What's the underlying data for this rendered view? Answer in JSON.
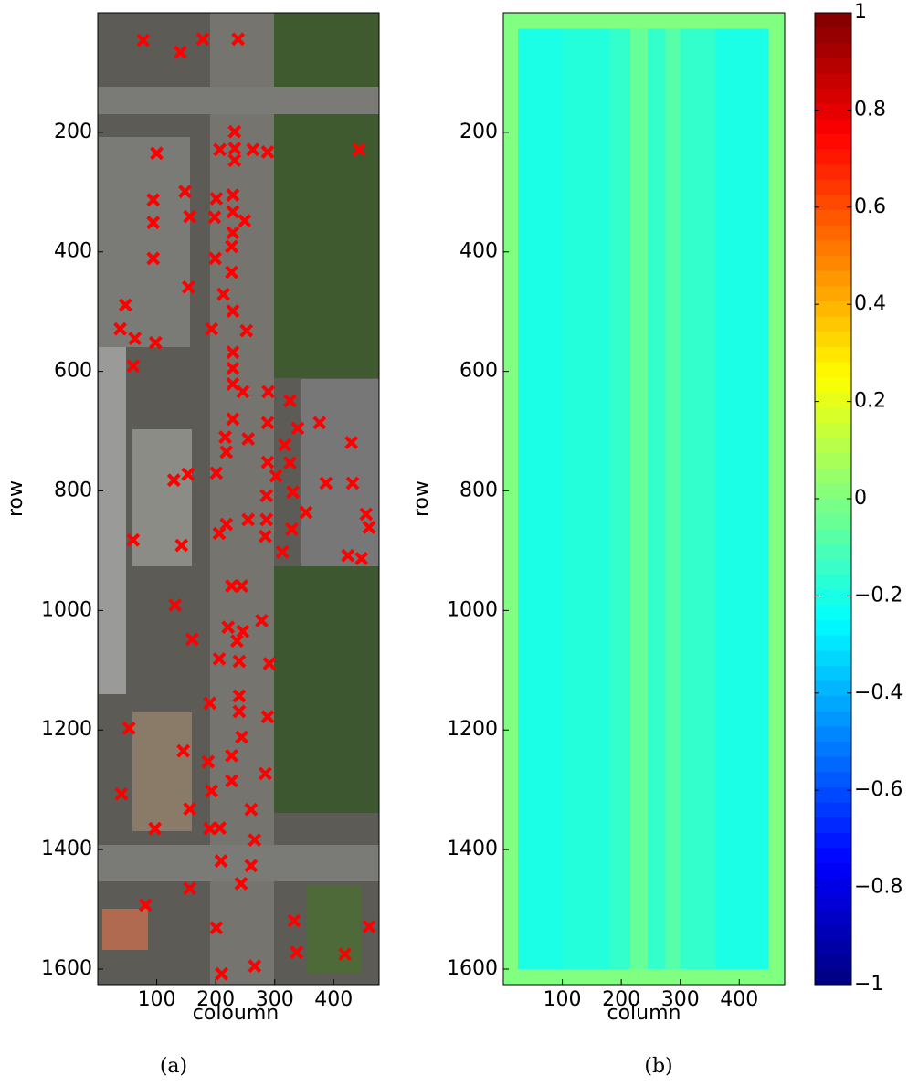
{
  "chart_data": [
    {
      "type": "scatter",
      "caption": "(a)",
      "xlabel": "coloumn",
      "ylabel": "row",
      "xlim": [
        0,
        477
      ],
      "ylim": [
        0,
        1626
      ],
      "y_reversed": true,
      "xticks": [
        100,
        200,
        300,
        400
      ],
      "yticks": [
        200,
        400,
        600,
        800,
        1000,
        1200,
        1400,
        1600
      ],
      "marker": "x",
      "color": "#ff0000",
      "x": [
        77,
        140,
        178,
        238,
        100,
        207,
        232,
        232,
        232,
        263,
        288,
        443,
        94,
        94,
        94,
        148,
        156,
        201,
        198,
        229,
        229,
        229,
        249,
        199,
        227,
        227,
        154,
        213,
        47,
        38,
        63,
        60,
        98,
        193,
        229,
        252,
        229,
        229,
        229,
        246,
        289,
        326,
        229,
        288,
        339,
        255,
        216,
        218,
        317,
        376,
        430,
        288,
        326,
        153,
        129,
        201,
        286,
        302,
        331,
        387,
        432,
        218,
        255,
        286,
        329,
        353,
        455,
        460,
        60,
        142,
        206,
        284,
        313,
        447,
        424,
        227,
        244,
        131,
        221,
        236,
        278,
        246,
        240,
        206,
        291,
        160,
        240,
        240,
        190,
        53,
        288,
        244,
        145,
        187,
        227,
        284,
        193,
        227,
        40,
        156,
        207,
        260,
        190,
        266,
        97,
        209,
        260,
        243,
        156,
        81,
        201,
        333,
        337,
        419,
        460,
        266,
        210
      ],
      "values": [
        46,
        66,
        44,
        44,
        235,
        229,
        199,
        227,
        247,
        229,
        233,
        229,
        313,
        351,
        411,
        299,
        341,
        311,
        342,
        305,
        333,
        368,
        348,
        411,
        391,
        434,
        459,
        471,
        489,
        529,
        545,
        591,
        552,
        529,
        499,
        532,
        568,
        595,
        621,
        634,
        634,
        649,
        680,
        686,
        695,
        713,
        710,
        735,
        723,
        686,
        719,
        752,
        753,
        772,
        782,
        770,
        808,
        775,
        802,
        787,
        787,
        856,
        848,
        848,
        864,
        836,
        839,
        861,
        882,
        891,
        871,
        876,
        902,
        913,
        908,
        959,
        959,
        991,
        1028,
        1051,
        1017,
        1035,
        1085,
        1081,
        1089,
        1048,
        1143,
        1169,
        1155,
        1197,
        1178,
        1212,
        1235,
        1253,
        1243,
        1273,
        1302,
        1285,
        1307,
        1332,
        1364,
        1333,
        1365,
        1384,
        1365,
        1419,
        1427,
        1457,
        1465,
        1493,
        1531,
        1519,
        1572,
        1575,
        1529,
        1595,
        1608
      ]
    },
    {
      "type": "heatmap",
      "caption": "(b)",
      "xlabel": "column",
      "ylabel": "row",
      "xlim": [
        0,
        477
      ],
      "ylim": [
        0,
        1626
      ],
      "y_reversed": true,
      "xticks": [
        100,
        200,
        300,
        400
      ],
      "yticks": [
        200,
        400,
        600,
        800,
        1000,
        1200,
        1400,
        1600
      ],
      "colormap": "jet",
      "clim": [
        -1,
        1
      ],
      "x_edges": [
        0,
        25,
        100,
        180,
        215,
        245,
        275,
        300,
        360,
        450,
        477
      ],
      "y_edges": [
        0,
        27,
        400,
        800,
        1200,
        1600,
        1626
      ],
      "z": [
        [
          0,
          0,
          0,
          0,
          0,
          0,
          0,
          0,
          0,
          0
        ],
        [
          0,
          -0.2,
          -0.18,
          -0.15,
          -0.05,
          -0.15,
          -0.08,
          -0.15,
          -0.2,
          0
        ],
        [
          0,
          -0.2,
          -0.18,
          -0.15,
          -0.05,
          -0.15,
          -0.08,
          -0.15,
          -0.2,
          0
        ],
        [
          0,
          -0.2,
          -0.18,
          -0.15,
          -0.05,
          -0.15,
          -0.08,
          -0.15,
          -0.2,
          0
        ],
        [
          0,
          -0.2,
          -0.18,
          -0.15,
          -0.05,
          -0.15,
          -0.08,
          -0.15,
          -0.2,
          0
        ],
        [
          0,
          0,
          0,
          0,
          0,
          0,
          0,
          0,
          0,
          0
        ]
      ],
      "colorbar_ticks": [
        {
          "value": -1,
          "label": "−1"
        },
        {
          "value": -0.8,
          "label": "−0.8"
        },
        {
          "value": -0.6,
          "label": "−0.6"
        },
        {
          "value": -0.4,
          "label": "−0.4"
        },
        {
          "value": -0.2,
          "label": "−0.2"
        },
        0,
        0.2,
        0.4,
        0.6,
        0.8,
        1
      ]
    }
  ]
}
